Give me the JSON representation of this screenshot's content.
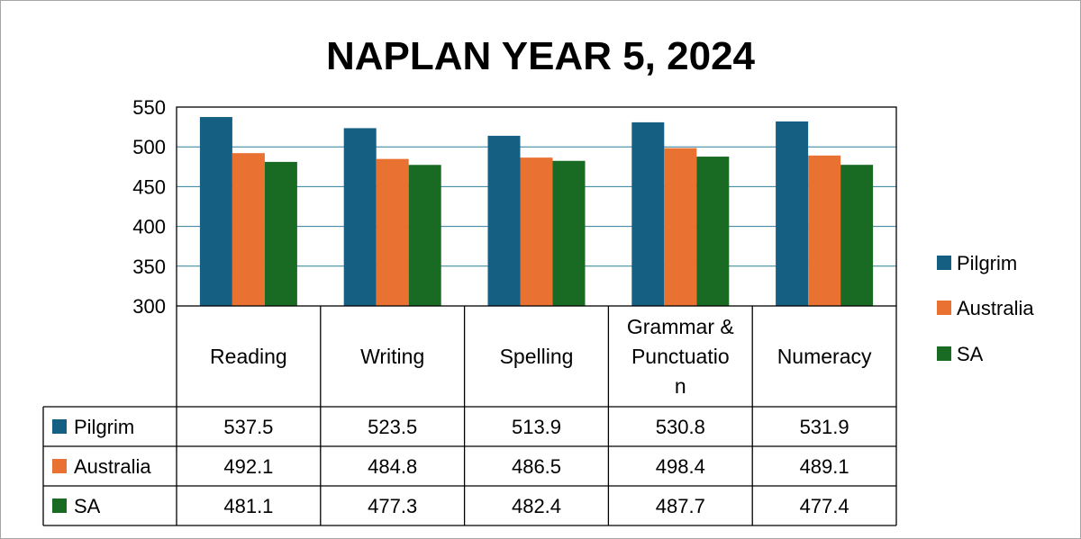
{
  "chart_data": {
    "type": "bar",
    "title": "NAPLAN YEAR 5, 2024",
    "xlabel": "",
    "ylabel": "",
    "ylim": [
      300,
      550
    ],
    "yticks": [
      300,
      350,
      400,
      450,
      500,
      550
    ],
    "grid": true,
    "legend_position": "right",
    "data_table": true,
    "categories": [
      "Reading",
      "Writing",
      "Spelling",
      "Grammar & Punctuation",
      "Numeracy"
    ],
    "category_display": [
      [
        "Reading"
      ],
      [
        "Writing"
      ],
      [
        "Spelling"
      ],
      [
        "Grammar &",
        "Punctuatio",
        "n"
      ],
      [
        "Numeracy"
      ]
    ],
    "series": [
      {
        "name": "Pilgrim",
        "color": "#156082",
        "values": [
          537.5,
          523.5,
          513.9,
          530.8,
          531.9
        ],
        "labels": [
          "537.5",
          "523.5",
          "513.9",
          "530.8",
          "531.9"
        ]
      },
      {
        "name": "Australia",
        "color": "#E97132",
        "values": [
          492.1,
          484.8,
          486.5,
          498.4,
          489.1
        ],
        "labels": [
          "492.1",
          "484.8",
          "486.5",
          "498.4",
          "489.1"
        ]
      },
      {
        "name": "SA",
        "color": "#196B24",
        "values": [
          481.1,
          477.3,
          482.4,
          487.7,
          477.4
        ],
        "labels": [
          "481.1",
          "477.3",
          "482.4",
          "487.7",
          "477.4"
        ]
      }
    ]
  }
}
